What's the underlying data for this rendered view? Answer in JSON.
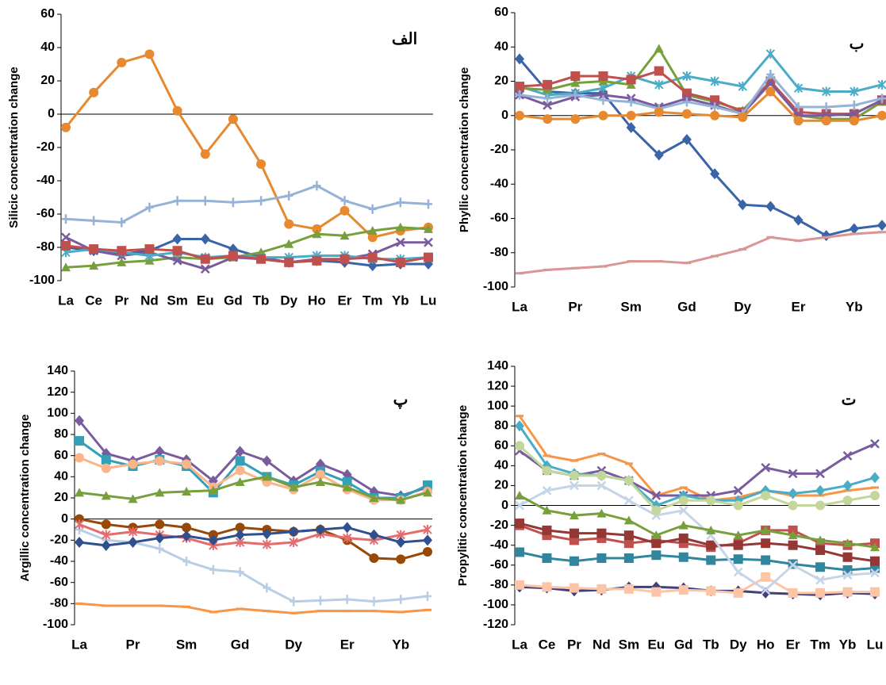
{
  "chart_data": [
    {
      "type": "line",
      "annotation": "الف",
      "ylabel": "Silicic concentration change",
      "categories": [
        "La",
        "Ce",
        "Pr",
        "Nd",
        "Sm",
        "Eu",
        "Gd",
        "Tb",
        "Dy",
        "Ho",
        "Er",
        "Tm",
        "Yb",
        "Lu"
      ],
      "ylim": [
        -100,
        60
      ],
      "yticks": [
        -100,
        -80,
        -60,
        -40,
        -20,
        0,
        20,
        40,
        60
      ],
      "series": [
        {
          "color": "#e6892f",
          "marker": "circle",
          "values": [
            -8,
            13,
            31,
            36,
            2,
            -24,
            -3,
            -30,
            -66,
            -69,
            -58,
            -74,
            -70,
            -68
          ]
        },
        {
          "color": "#95b3d7",
          "marker": "plus",
          "values": [
            -63,
            -64,
            -65,
            -56,
            -52,
            -52,
            -53,
            -52,
            -49,
            -43,
            -52,
            -57,
            -53,
            -54
          ]
        },
        {
          "color": "#3a64a8",
          "marker": "diamond",
          "values": [
            -80,
            -82,
            -84,
            -82,
            -75,
            -75,
            -81,
            -86,
            -89,
            -88,
            -89,
            -91,
            -90,
            -90
          ]
        },
        {
          "color": "#77a03c",
          "marker": "triangle",
          "values": [
            -92,
            -91,
            -89,
            -88,
            -86,
            -87,
            -86,
            -83,
            -78,
            -72,
            -73,
            -70,
            -68,
            -69
          ]
        },
        {
          "color": "#7a5c9e",
          "marker": "x",
          "values": [
            -74,
            -82,
            -85,
            -83,
            -88,
            -93,
            -86,
            -87,
            -89,
            -87,
            -87,
            -84,
            -77,
            -77
          ]
        },
        {
          "color": "#4bacc6",
          "marker": "star",
          "values": [
            -83,
            -81,
            -83,
            -85,
            -83,
            -86,
            -85,
            -86,
            -86,
            -85,
            -85,
            -87,
            -87,
            -86
          ]
        },
        {
          "color": "#c0504d",
          "marker": "square",
          "values": [
            -79,
            -81,
            -82,
            -81,
            -82,
            -87,
            -85,
            -87,
            -89,
            -88,
            -87,
            -86,
            -89,
            -86
          ]
        }
      ]
    },
    {
      "type": "line",
      "annotation": "ب",
      "ylabel": "Phyllic concentration change",
      "categories": [
        "La",
        null,
        "Pr",
        null,
        "Sm",
        null,
        "Gd",
        null,
        "Dy",
        null,
        "Er",
        null,
        "Yb",
        null
      ],
      "ylim": [
        -100,
        60
      ],
      "yticks": [
        -100,
        -80,
        -60,
        -40,
        -20,
        0,
        20,
        40,
        60
      ],
      "series": [
        {
          "color": "#3a64a8",
          "marker": "diamond",
          "values": [
            33,
            14,
            13,
            13,
            -7,
            -23,
            -14,
            -34,
            -52,
            -53,
            -61,
            -70,
            -66,
            -64
          ]
        },
        {
          "color": "#d99694",
          "marker": "dash",
          "values": [
            -92,
            -90,
            -89,
            -88,
            -85,
            -85,
            -86,
            -82,
            -78,
            -71,
            -73,
            -71,
            -69,
            -68
          ]
        },
        {
          "color": "#4bacc6",
          "marker": "star",
          "values": [
            17,
            12,
            13,
            16,
            23,
            18,
            23,
            20,
            17,
            36,
            16,
            14,
            14,
            18
          ]
        },
        {
          "color": "#77a03c",
          "marker": "triangle",
          "values": [
            16,
            15,
            19,
            20,
            18,
            39,
            12,
            8,
            3,
            20,
            0,
            -2,
            -2,
            8
          ]
        },
        {
          "color": "#c0504d",
          "marker": "square",
          "values": [
            17,
            18,
            23,
            23,
            21,
            26,
            13,
            9,
            2,
            20,
            2,
            1,
            1,
            9
          ]
        },
        {
          "color": "#7a5c9e",
          "marker": "x",
          "values": [
            12,
            6,
            11,
            12,
            10,
            5,
            10,
            6,
            1,
            19,
            0,
            0,
            1,
            9
          ]
        },
        {
          "color": "#95b3d7",
          "marker": "plus",
          "values": [
            12,
            10,
            12,
            9,
            8,
            4,
            8,
            5,
            1,
            24,
            5,
            5,
            6,
            10
          ]
        },
        {
          "color": "#e6892f",
          "marker": "circle",
          "values": [
            0,
            -2,
            -2,
            0,
            0,
            2,
            1,
            0,
            -1,
            14,
            -3,
            -3,
            -3,
            0
          ]
        }
      ]
    },
    {
      "type": "line",
      "annotation": "پ",
      "ylabel": "Argillic concentration change",
      "categories": [
        "La",
        null,
        "Pr",
        null,
        "Sm",
        null,
        "Gd",
        null,
        "Dy",
        null,
        "Er",
        null,
        "Yb",
        null
      ],
      "ylim": [
        -100,
        140
      ],
      "yticks": [
        -100,
        -80,
        -60,
        -40,
        -20,
        0,
        20,
        40,
        60,
        80,
        100,
        120,
        140
      ],
      "series": [
        {
          "color": "#7a5c9e",
          "marker": "diamond",
          "values": [
            93,
            62,
            55,
            64,
            56,
            36,
            64,
            55,
            36,
            52,
            42,
            26,
            22,
            30
          ]
        },
        {
          "color": "#31a0b8",
          "marker": "square",
          "values": [
            74,
            56,
            50,
            56,
            50,
            25,
            55,
            40,
            32,
            45,
            35,
            20,
            20,
            32
          ]
        },
        {
          "color": "#fab58a",
          "marker": "circle",
          "values": [
            58,
            48,
            52,
            55,
            52,
            30,
            46,
            35,
            28,
            42,
            28,
            18,
            18,
            26
          ]
        },
        {
          "color": "#77a03c",
          "marker": "triangle",
          "values": [
            25,
            22,
            19,
            25,
            26,
            27,
            35,
            40,
            30,
            35,
            30,
            20,
            18,
            25
          ]
        },
        {
          "color": "#b9cde5",
          "marker": "plus",
          "values": [
            -10,
            -20,
            -22,
            -28,
            -40,
            -48,
            -50,
            -65,
            -78,
            -77,
            -76,
            -78,
            -76,
            -73
          ]
        },
        {
          "color": "#f79646",
          "marker": "dash",
          "values": [
            -80,
            -82,
            -82,
            -82,
            -83,
            -88,
            -85,
            -87,
            -89,
            -87,
            -87,
            -87,
            -88,
            -86
          ]
        },
        {
          "color": "#984807",
          "marker": "circle",
          "values": [
            0,
            -5,
            -8,
            -5,
            -8,
            -15,
            -8,
            -10,
            -12,
            -10,
            -20,
            -37,
            -38,
            -31
          ]
        },
        {
          "color": "#e46c6c",
          "marker": "star",
          "values": [
            -5,
            -15,
            -12,
            -15,
            -18,
            -25,
            -22,
            -24,
            -22,
            -14,
            -18,
            -20,
            -15,
            -10
          ]
        },
        {
          "color": "#2f4f8f",
          "marker": "diamond",
          "values": [
            -22,
            -25,
            -22,
            -18,
            -16,
            -20,
            -15,
            -14,
            -12,
            -10,
            -8,
            -15,
            -22,
            -20
          ]
        }
      ]
    },
    {
      "type": "line",
      "annotation": "ت",
      "ylabel": "Propylitic concentration change",
      "categories": [
        "La",
        "Ce",
        "Pr",
        "Nd",
        "Sm",
        "Eu",
        "Gd",
        "Tb",
        "Dy",
        "Ho",
        "Er",
        "Tm",
        "Yb",
        "Lu"
      ],
      "ylim": [
        -120,
        140
      ],
      "yticks": [
        -120,
        -100,
        -80,
        -60,
        -40,
        -20,
        0,
        20,
        40,
        60,
        80,
        100,
        120,
        140
      ],
      "series": [
        {
          "color": "#f79646",
          "marker": "dash",
          "values": [
            90,
            50,
            45,
            52,
            42,
            10,
            18,
            5,
            8,
            15,
            10,
            10,
            15,
            18
          ]
        },
        {
          "color": "#7a5c9e",
          "marker": "x",
          "values": [
            55,
            35,
            30,
            35,
            25,
            10,
            10,
            10,
            15,
            38,
            32,
            32,
            50,
            62
          ]
        },
        {
          "color": "#31859c",
          "marker": "square",
          "values": [
            -47,
            -53,
            -56,
            -53,
            -53,
            -50,
            -52,
            -55,
            -54,
            -55,
            -59,
            -62,
            -65,
            -63
          ]
        },
        {
          "color": "#403f7f",
          "marker": "diamond",
          "values": [
            -82,
            -83,
            -86,
            -85,
            -82,
            -82,
            -83,
            -86,
            -86,
            -88,
            -89,
            -90,
            -88,
            -89
          ]
        },
        {
          "color": "#fcc5a5",
          "marker": "square",
          "values": [
            -80,
            -82,
            -83,
            -84,
            -84,
            -87,
            -85,
            -86,
            -88,
            -72,
            -88,
            -88,
            -87,
            -87
          ]
        },
        {
          "color": "#4bacc6",
          "marker": "diamond",
          "values": [
            80,
            40,
            32,
            30,
            25,
            0,
            10,
            5,
            5,
            15,
            12,
            15,
            20,
            28
          ]
        },
        {
          "color": "#c0504d",
          "marker": "square",
          "values": [
            -20,
            -30,
            -35,
            -33,
            -38,
            -35,
            -38,
            -42,
            -38,
            -25,
            -25,
            -38,
            -40,
            -38
          ]
        },
        {
          "color": "#953735",
          "marker": "square",
          "values": [
            -18,
            -25,
            -28,
            -28,
            -30,
            -38,
            -33,
            -40,
            -40,
            -38,
            -40,
            -45,
            -52,
            -56
          ]
        },
        {
          "color": "#c6d4e8",
          "marker": "x",
          "values": [
            0,
            15,
            20,
            20,
            5,
            -10,
            -5,
            -30,
            -67,
            -85,
            -60,
            -75,
            -70,
            -68
          ]
        },
        {
          "color": "#77a03c",
          "marker": "triangle",
          "values": [
            10,
            -5,
            -10,
            -8,
            -15,
            -30,
            -20,
            -25,
            -30,
            -25,
            -30,
            -35,
            -38,
            -42
          ]
        },
        {
          "color": "#c3d69b",
          "marker": "circle",
          "values": [
            60,
            35,
            30,
            30,
            25,
            -5,
            5,
            5,
            0,
            10,
            0,
            0,
            5,
            10
          ]
        }
      ]
    }
  ]
}
